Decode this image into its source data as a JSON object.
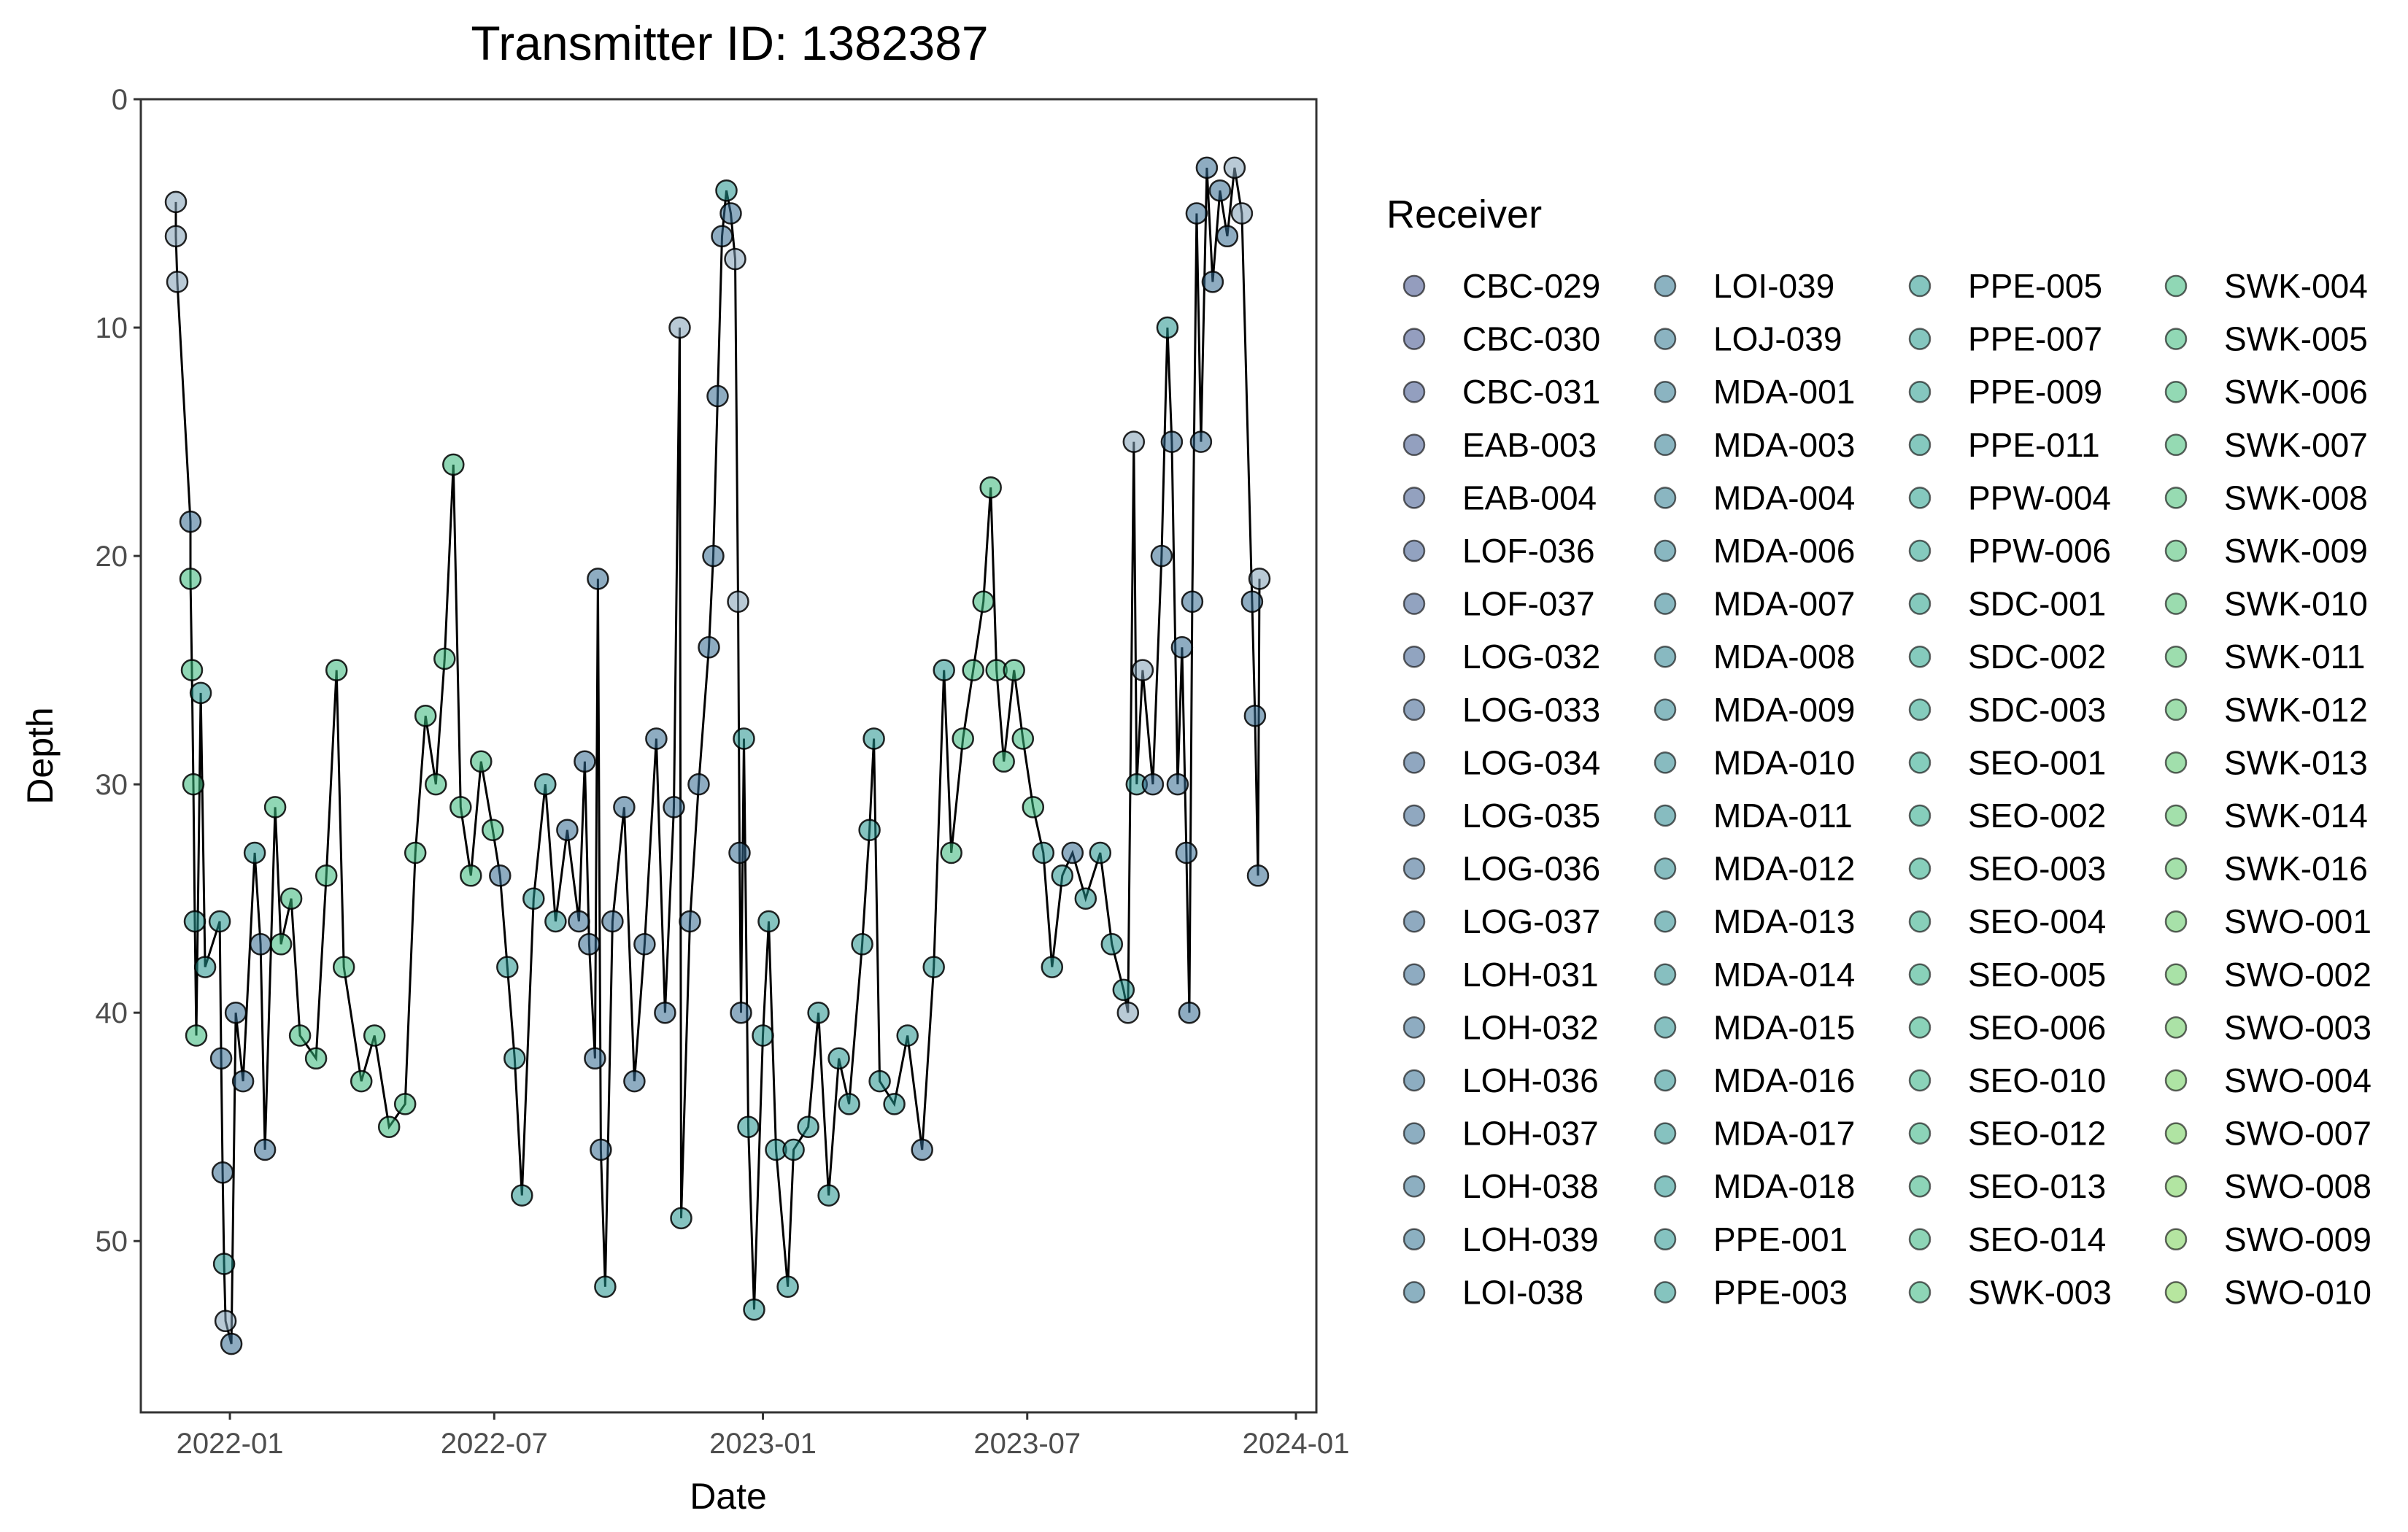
{
  "chart_data": {
    "type": "scatter",
    "title": "Transmitter ID: 1382387",
    "xlabel": "Date",
    "ylabel": "Depth",
    "y_reversed": true,
    "xlim": [
      "2021-11-01",
      "2024-01-15"
    ],
    "ylim": [
      0,
      57.5
    ],
    "x_ticks": [
      "2022-01",
      "2022-07",
      "2023-01",
      "2023-07",
      "2024-01"
    ],
    "y_ticks": [
      0,
      10,
      20,
      30,
      40,
      50
    ],
    "grid": false,
    "line_connecting_points": true,
    "legend": {
      "title": "Receiver",
      "position": "right",
      "columns": 4,
      "colormap": "viridis (alpha 0.5)",
      "entries": [
        "CBC-029",
        "CBC-030",
        "CBC-031",
        "EAB-003",
        "EAB-004",
        "LOF-036",
        "LOF-037",
        "LOG-032",
        "LOG-033",
        "LOG-034",
        "LOG-035",
        "LOG-036",
        "LOG-037",
        "LOH-031",
        "LOH-032",
        "LOH-036",
        "LOH-037",
        "LOH-038",
        "LOH-039",
        "LOI-038",
        "LOI-039",
        "LOJ-039",
        "MDA-001",
        "MDA-003",
        "MDA-004",
        "MDA-006",
        "MDA-007",
        "MDA-008",
        "MDA-009",
        "MDA-010",
        "MDA-011",
        "MDA-012",
        "MDA-013",
        "MDA-014",
        "MDA-015",
        "MDA-016",
        "MDA-017",
        "MDA-018",
        "PPE-001",
        "PPE-003",
        "PPE-005",
        "PPE-007",
        "PPE-009",
        "PPE-011",
        "PPW-004",
        "PPW-006",
        "SDC-001",
        "SDC-002",
        "SDC-003",
        "SEO-001",
        "SEO-002",
        "SEO-003",
        "SEO-004",
        "SEO-005",
        "SEO-006",
        "SEO-010",
        "SEO-012",
        "SEO-013",
        "SEO-014",
        "SWK-003",
        "SWK-004",
        "SWK-005",
        "SWK-006",
        "SWK-007",
        "SWK-008",
        "SWK-009",
        "SWK-010",
        "SWK-011",
        "SWK-012",
        "SWK-013",
        "SWK-014",
        "SWK-016",
        "SWO-001",
        "SWO-002",
        "SWO-003",
        "SWO-004",
        "SWO-007",
        "SWO-008",
        "SWO-009",
        "SWO-010"
      ]
    },
    "series": [
      {
        "points": [
          [
            "2021-11-25",
            4.5,
            "light"
          ],
          [
            "2021-11-25",
            6,
            "light"
          ],
          [
            "2021-11-26",
            8,
            "light"
          ],
          [
            "2021-12-05",
            18.5,
            "dark"
          ],
          [
            "2021-12-05",
            21,
            "green"
          ],
          [
            "2021-12-06",
            25,
            "green"
          ],
          [
            "2021-12-07",
            30,
            "green"
          ],
          [
            "2021-12-08",
            36,
            "teal"
          ],
          [
            "2021-12-09",
            41,
            "green"
          ],
          [
            "2021-12-12",
            26,
            "teal"
          ],
          [
            "2021-12-15",
            38,
            "teal"
          ],
          [
            "2021-12-25",
            36,
            "teal"
          ],
          [
            "2021-12-26",
            42,
            "dark"
          ],
          [
            "2021-12-27",
            47,
            "dark"
          ],
          [
            "2021-12-28",
            51,
            "teal"
          ],
          [
            "2021-12-29",
            53.5,
            "light"
          ],
          [
            "2022-01-02",
            54.5,
            "dark"
          ],
          [
            "2022-01-05",
            40,
            "dark"
          ],
          [
            "2022-01-10",
            43,
            "dark"
          ],
          [
            "2022-01-18",
            33,
            "teal"
          ],
          [
            "2022-01-22",
            37,
            "dark"
          ],
          [
            "2022-01-25",
            46,
            "dark"
          ],
          [
            "2022-02-01",
            31,
            "green"
          ],
          [
            "2022-02-05",
            37,
            "green"
          ],
          [
            "2022-02-12",
            35,
            "green"
          ],
          [
            "2022-02-18",
            41,
            "green"
          ],
          [
            "2022-03-01",
            42,
            "green"
          ],
          [
            "2022-03-08",
            34,
            "green"
          ],
          [
            "2022-03-15",
            25,
            "green"
          ],
          [
            "2022-03-20",
            38,
            "green"
          ],
          [
            "2022-04-01",
            43,
            "green"
          ],
          [
            "2022-04-10",
            41,
            "green"
          ],
          [
            "2022-04-20",
            45,
            "green"
          ],
          [
            "2022-05-01",
            44,
            "green"
          ],
          [
            "2022-05-08",
            33,
            "green"
          ],
          [
            "2022-05-15",
            27,
            "green"
          ],
          [
            "2022-05-22",
            30,
            "green"
          ],
          [
            "2022-05-28",
            24.5,
            "green"
          ],
          [
            "2022-06-03",
            16,
            "green"
          ],
          [
            "2022-06-08",
            31,
            "green"
          ],
          [
            "2022-06-15",
            34,
            "green"
          ],
          [
            "2022-06-22",
            29,
            "green"
          ],
          [
            "2022-06-30",
            32,
            "green"
          ],
          [
            "2022-07-05",
            34,
            "dark"
          ],
          [
            "2022-07-10",
            38,
            "teal"
          ],
          [
            "2022-07-15",
            42,
            "teal"
          ],
          [
            "2022-07-20",
            48,
            "teal"
          ],
          [
            "2022-07-28",
            35,
            "teal"
          ],
          [
            "2022-08-05",
            30,
            "teal"
          ],
          [
            "2022-08-12",
            36,
            "teal"
          ],
          [
            "2022-08-20",
            32,
            "dark"
          ],
          [
            "2022-08-28",
            36,
            "dark"
          ],
          [
            "2022-09-01",
            29,
            "dark"
          ],
          [
            "2022-09-04",
            37,
            "dark"
          ],
          [
            "2022-09-08",
            42,
            "dark"
          ],
          [
            "2022-09-10",
            21,
            "dark"
          ],
          [
            "2022-09-12",
            46,
            "dark"
          ],
          [
            "2022-09-15",
            52,
            "teal"
          ],
          [
            "2022-09-20",
            36,
            "dark"
          ],
          [
            "2022-09-28",
            31,
            "dark"
          ],
          [
            "2022-10-05",
            43,
            "dark"
          ],
          [
            "2022-10-12",
            37,
            "dark"
          ],
          [
            "2022-10-20",
            28,
            "dark"
          ],
          [
            "2022-10-26",
            40,
            "dark"
          ],
          [
            "2022-11-01",
            31,
            "dark"
          ],
          [
            "2022-11-05",
            10,
            "light"
          ],
          [
            "2022-11-06",
            49,
            "teal"
          ],
          [
            "2022-11-12",
            36,
            "dark"
          ],
          [
            "2022-11-18",
            30,
            "dark"
          ],
          [
            "2022-11-25",
            24,
            "dark"
          ],
          [
            "2022-11-28",
            20,
            "dark"
          ],
          [
            "2022-12-01",
            13,
            "dark"
          ],
          [
            "2022-12-04",
            6,
            "dark"
          ],
          [
            "2022-12-07",
            4,
            "teal"
          ],
          [
            "2022-12-10",
            5,
            "dark"
          ],
          [
            "2022-12-13",
            7,
            "light"
          ],
          [
            "2022-12-15",
            22,
            "light"
          ],
          [
            "2022-12-16",
            33,
            "dark"
          ],
          [
            "2022-12-17",
            40,
            "dark"
          ],
          [
            "2022-12-19",
            28,
            "teal"
          ],
          [
            "2022-12-22",
            45,
            "teal"
          ],
          [
            "2022-12-26",
            53,
            "teal"
          ],
          [
            "2023-01-01",
            41,
            "teal"
          ],
          [
            "2023-01-05",
            36,
            "teal"
          ],
          [
            "2023-01-10",
            46,
            "teal"
          ],
          [
            "2023-01-18",
            52,
            "teal"
          ],
          [
            "2023-01-22",
            46,
            "teal"
          ],
          [
            "2023-02-01",
            45,
            "teal"
          ],
          [
            "2023-02-08",
            40,
            "teal"
          ],
          [
            "2023-02-15",
            48,
            "teal"
          ],
          [
            "2023-02-22",
            42,
            "teal"
          ],
          [
            "2023-03-01",
            44,
            "teal"
          ],
          [
            "2023-03-10",
            37,
            "teal"
          ],
          [
            "2023-03-15",
            32,
            "teal"
          ],
          [
            "2023-03-18",
            28,
            "teal"
          ],
          [
            "2023-03-22",
            43,
            "teal"
          ],
          [
            "2023-04-01",
            44,
            "teal"
          ],
          [
            "2023-04-10",
            41,
            "teal"
          ],
          [
            "2023-04-20",
            46,
            "dark"
          ],
          [
            "2023-04-28",
            38,
            "teal"
          ],
          [
            "2023-05-05",
            25,
            "teal"
          ],
          [
            "2023-05-10",
            33,
            "green"
          ],
          [
            "2023-05-18",
            28,
            "green"
          ],
          [
            "2023-05-25",
            25,
            "green"
          ],
          [
            "2023-06-01",
            22,
            "green"
          ],
          [
            "2023-06-06",
            17,
            "green"
          ],
          [
            "2023-06-10",
            25,
            "green"
          ],
          [
            "2023-06-15",
            29,
            "green"
          ],
          [
            "2023-06-22",
            25,
            "green"
          ],
          [
            "2023-06-28",
            28,
            "green"
          ],
          [
            "2023-07-05",
            31,
            "green"
          ],
          [
            "2023-07-12",
            33,
            "teal"
          ],
          [
            "2023-07-18",
            38,
            "teal"
          ],
          [
            "2023-07-25",
            34,
            "teal"
          ],
          [
            "2023-08-01",
            33,
            "dark"
          ],
          [
            "2023-08-10",
            35,
            "teal"
          ],
          [
            "2023-08-20",
            33,
            "teal"
          ],
          [
            "2023-08-28",
            37,
            "teal"
          ],
          [
            "2023-09-05",
            39,
            "teal"
          ],
          [
            "2023-09-08",
            40,
            "light"
          ],
          [
            "2023-09-12",
            15,
            "light"
          ],
          [
            "2023-09-14",
            30,
            "teal"
          ],
          [
            "2023-09-18",
            25,
            "light"
          ],
          [
            "2023-09-25",
            30,
            "dark"
          ],
          [
            "2023-10-01",
            20,
            "dark"
          ],
          [
            "2023-10-05",
            10,
            "teal"
          ],
          [
            "2023-10-08",
            15,
            "dark"
          ],
          [
            "2023-10-12",
            30,
            "dark"
          ],
          [
            "2023-10-15",
            24,
            "dark"
          ],
          [
            "2023-10-18",
            33,
            "dark"
          ],
          [
            "2023-10-20",
            40,
            "dark"
          ],
          [
            "2023-10-22",
            22,
            "dark"
          ],
          [
            "2023-10-25",
            5,
            "dark"
          ],
          [
            "2023-10-28",
            15,
            "dark"
          ],
          [
            "2023-11-01",
            3,
            "dark"
          ],
          [
            "2023-11-05",
            8,
            "dark"
          ],
          [
            "2023-11-10",
            4,
            "dark"
          ],
          [
            "2023-11-15",
            6,
            "dark"
          ],
          [
            "2023-11-20",
            3,
            "light"
          ],
          [
            "2023-11-25",
            5,
            "light"
          ],
          [
            "2023-12-02",
            22,
            "dark"
          ],
          [
            "2023-12-04",
            27,
            "dark"
          ],
          [
            "2023-12-06",
            34,
            "dark"
          ],
          [
            "2023-12-07",
            21,
            "light"
          ]
        ]
      }
    ],
    "color_groups": {
      "dark": "#31688e",
      "teal": "#21918c",
      "green": "#35b779",
      "light": "#7f9fb5"
    }
  }
}
